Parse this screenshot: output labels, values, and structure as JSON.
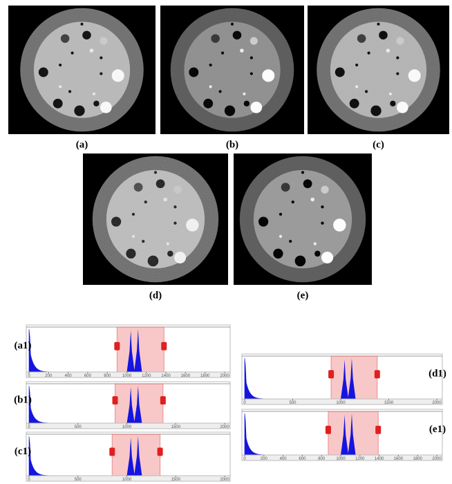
{
  "images": [
    {
      "label": "(a)"
    },
    {
      "label": "(b)"
    },
    {
      "label": "(c)"
    },
    {
      "label": "(d)"
    },
    {
      "label": "(e)"
    }
  ],
  "histograms": [
    {
      "label": "(a1)",
      "ticks": [
        0,
        200,
        400,
        600,
        800,
        1000,
        1200,
        1400,
        1600,
        1800,
        2000
      ]
    },
    {
      "label": "(b1)",
      "ticks": [
        0,
        500,
        1000,
        1500,
        2000
      ]
    },
    {
      "label": "(c1)",
      "ticks": [
        0,
        500,
        1000,
        1500,
        2000
      ]
    },
    {
      "label": "(d1)",
      "ticks": [
        0,
        500,
        1000,
        1500,
        2000
      ]
    },
    {
      "label": "(e1)",
      "ticks": [
        0,
        200,
        400,
        600,
        800,
        1000,
        1200,
        1400,
        1600,
        1800,
        2000
      ]
    }
  ]
}
